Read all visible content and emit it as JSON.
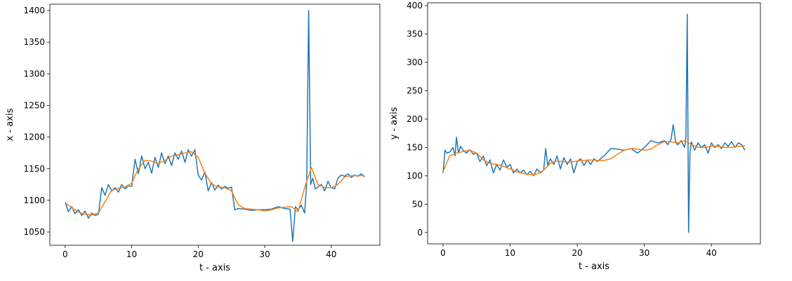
{
  "chart_data": [
    {
      "type": "line",
      "xlabel": "t - axis",
      "ylabel": "x - axis",
      "xlim": [
        -2.3,
        47.3
      ],
      "ylim": [
        1029,
        1410
      ],
      "xticks": [
        0,
        10,
        20,
        30,
        40
      ],
      "yticks": [
        1050,
        1100,
        1150,
        1200,
        1250,
        1300,
        1350,
        1400
      ],
      "series": [
        {
          "color": "#1f77b4",
          "x": [
            0,
            0.5,
            1,
            1.5,
            2,
            2.5,
            3,
            3.5,
            4,
            4.5,
            5,
            5.5,
            6,
            6.5,
            7,
            7.5,
            8,
            8.5,
            9,
            9.5,
            10,
            10.5,
            11,
            11.5,
            12,
            12.5,
            13,
            13.5,
            14,
            14.5,
            15,
            15.5,
            16,
            16.5,
            17,
            17.5,
            18,
            18.5,
            19,
            19.5,
            20,
            20.5,
            21,
            21.5,
            22,
            22.5,
            23,
            23.5,
            24,
            24.5,
            25,
            25.5,
            26,
            27,
            28,
            29,
            30,
            31,
            32,
            33,
            33.8,
            34.2,
            34.6,
            35,
            35.5,
            36,
            36.3,
            36.6,
            36.9,
            37.2,
            37.6,
            38,
            38.5,
            39,
            39.5,
            40,
            40.5,
            41,
            41.5,
            42,
            42.5,
            43,
            43.5,
            44,
            44.5,
            45
          ],
          "values": [
            1097,
            1082,
            1090,
            1079,
            1085,
            1076,
            1083,
            1072,
            1080,
            1076,
            1078,
            1120,
            1108,
            1125,
            1115,
            1120,
            1113,
            1125,
            1118,
            1123,
            1122,
            1165,
            1142,
            1170,
            1150,
            1160,
            1143,
            1168,
            1152,
            1175,
            1158,
            1170,
            1155,
            1175,
            1165,
            1178,
            1160,
            1180,
            1170,
            1180,
            1140,
            1132,
            1145,
            1115,
            1128,
            1116,
            1124,
            1118,
            1122,
            1119,
            1121,
            1085,
            1087,
            1086,
            1084,
            1085,
            1085,
            1086,
            1090,
            1087,
            1086,
            1035,
            1090,
            1085,
            1092,
            1080,
            1128,
            1400,
            1125,
            1135,
            1118,
            1121,
            1125,
            1115,
            1130,
            1120,
            1118,
            1135,
            1140,
            1138,
            1142,
            1136,
            1140,
            1138,
            1142,
            1137
          ]
        },
        {
          "color": "#ff7f0e",
          "x": [
            0,
            1,
            2,
            3,
            4,
            5,
            6,
            7,
            8,
            9,
            10,
            11,
            12,
            13,
            14,
            15,
            16,
            17,
            18,
            19,
            20,
            21,
            22,
            23,
            24,
            25,
            26,
            27,
            28,
            29,
            30,
            31,
            32,
            33,
            34,
            35,
            36,
            37,
            38,
            39,
            40,
            41,
            42,
            43,
            44,
            45
          ],
          "values": [
            1096,
            1088,
            1081,
            1078,
            1077,
            1080,
            1098,
            1116,
            1119,
            1121,
            1127,
            1150,
            1163,
            1162,
            1158,
            1163,
            1170,
            1172,
            1175,
            1177,
            1168,
            1143,
            1126,
            1121,
            1120,
            1115,
            1093,
            1087,
            1086,
            1085,
            1083,
            1085,
            1088,
            1089,
            1090,
            1082,
            1120,
            1152,
            1125,
            1120,
            1120,
            1125,
            1137,
            1139,
            1139,
            1139
          ]
        }
      ]
    },
    {
      "type": "line",
      "xlabel": "t - axis",
      "ylabel": "y - axis",
      "xlim": [
        -2.3,
        47.3
      ],
      "ylim": [
        -20,
        405
      ],
      "xticks": [
        0,
        10,
        20,
        30,
        40
      ],
      "yticks": [
        0,
        50,
        100,
        150,
        200,
        250,
        300,
        350,
        400
      ],
      "series": [
        {
          "color": "#1f77b4",
          "x": [
            0,
            0.3,
            0.6,
            1,
            1.5,
            1.8,
            2,
            2.3,
            2.6,
            3,
            3.5,
            4,
            4.5,
            5,
            5.5,
            6,
            6.5,
            7,
            7.5,
            8,
            8.5,
            9,
            9.5,
            10,
            10.5,
            11,
            11.5,
            12,
            12.5,
            13,
            13.5,
            14,
            14.5,
            15,
            15.3,
            15.6,
            16,
            16.5,
            17,
            17.5,
            18,
            18.5,
            19,
            19.5,
            20,
            20.5,
            21,
            21.5,
            22,
            22.5,
            23,
            24,
            25,
            26,
            27,
            28,
            29,
            30,
            31,
            32,
            33,
            33.5,
            34,
            34.3,
            34.7,
            35,
            35.5,
            36,
            36.2,
            36.4,
            36.6,
            36.8,
            37,
            37.5,
            38,
            38.5,
            39,
            39.5,
            40,
            40.5,
            41,
            41.5,
            42,
            42.5,
            43,
            43.5,
            44,
            44.5,
            45
          ],
          "values": [
            105,
            145,
            140,
            142,
            150,
            135,
            168,
            140,
            152,
            145,
            140,
            146,
            138,
            140,
            125,
            135,
            118,
            128,
            105,
            120,
            110,
            128,
            115,
            120,
            105,
            112,
            105,
            110,
            102,
            108,
            100,
            112,
            105,
            110,
            148,
            118,
            130,
            120,
            135,
            112,
            132,
            120,
            130,
            105,
            125,
            130,
            118,
            128,
            120,
            130,
            125,
            135,
            148,
            147,
            145,
            148,
            140,
            150,
            162,
            158,
            162,
            155,
            165,
            190,
            158,
            155,
            162,
            150,
            168,
            385,
            0,
            140,
            160,
            145,
            158,
            150,
            155,
            140,
            158,
            150,
            155,
            148,
            158,
            152,
            160,
            150,
            158,
            155,
            145
          ]
        },
        {
          "color": "#ff7f0e",
          "x": [
            0,
            1,
            2,
            3,
            4,
            5,
            6,
            7,
            8,
            9,
            10,
            11,
            12,
            13,
            14,
            15,
            16,
            17,
            18,
            19,
            20,
            21,
            22,
            23,
            24,
            25,
            26,
            27,
            28,
            29,
            30,
            31,
            32,
            33,
            34,
            35,
            36,
            37,
            38,
            39,
            40,
            41,
            42,
            43,
            44,
            45
          ],
          "values": [
            107,
            135,
            140,
            143,
            145,
            140,
            128,
            122,
            120,
            117,
            112,
            107,
            104,
            102,
            103,
            110,
            122,
            126,
            125,
            124,
            126,
            127,
            128,
            127,
            127,
            130,
            138,
            145,
            148,
            147,
            145,
            147,
            155,
            160,
            160,
            158,
            162,
            155,
            150,
            150,
            152,
            152,
            150,
            150,
            152,
            153
          ]
        }
      ]
    }
  ]
}
